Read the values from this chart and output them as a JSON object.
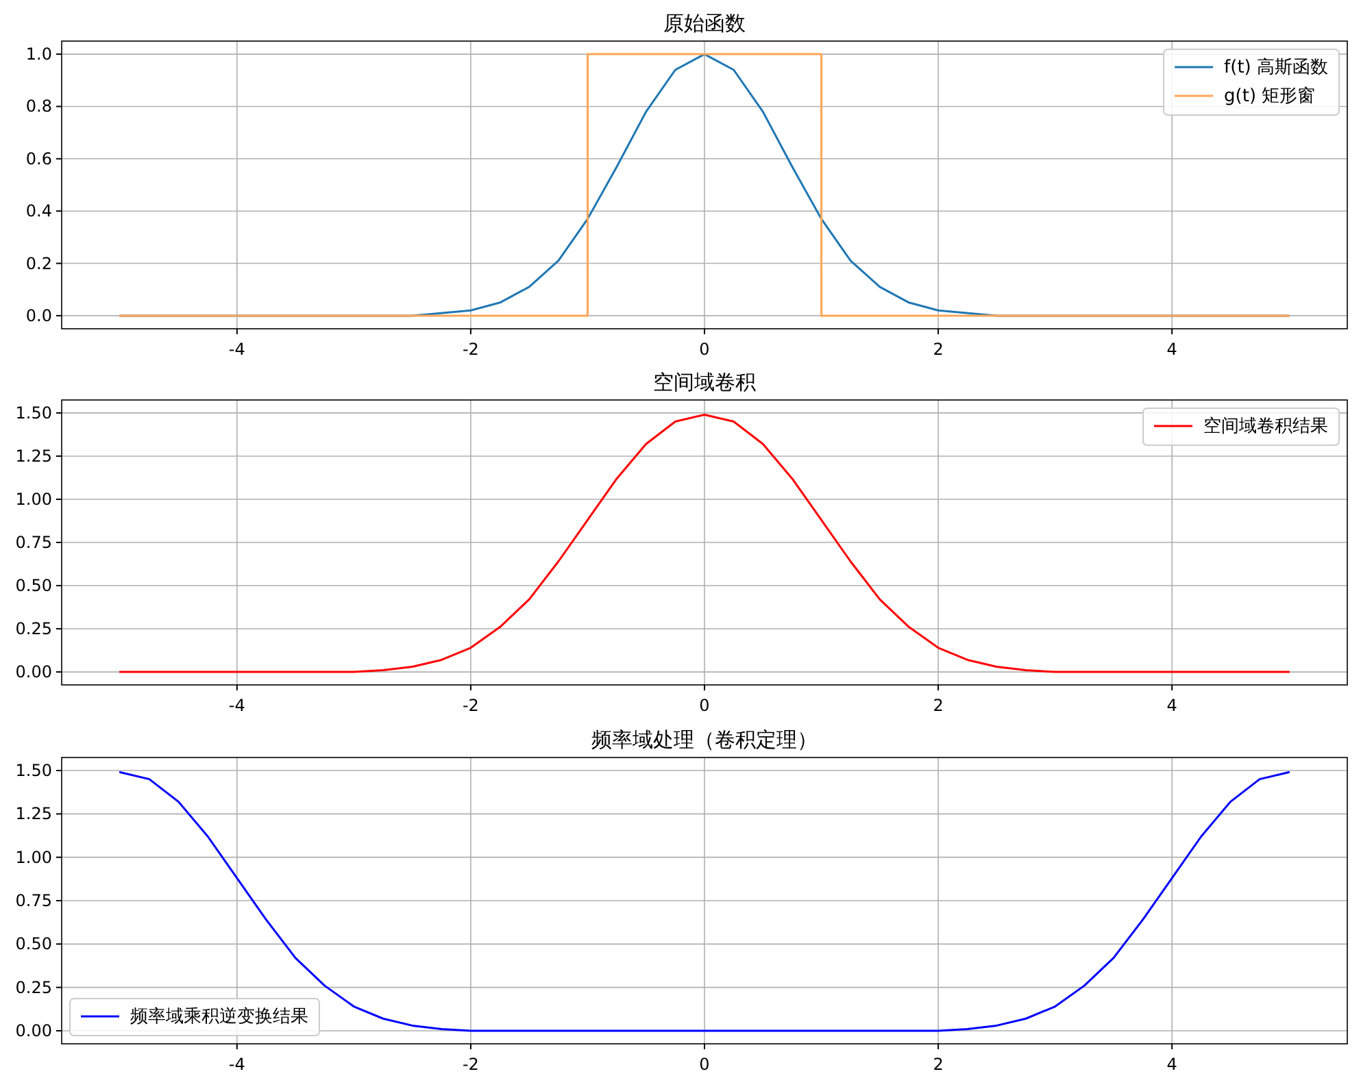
{
  "chart_data": [
    {
      "type": "line",
      "title": "原始函数",
      "xlim": [
        -5.5,
        5.5
      ],
      "xticks": [
        -4,
        -2,
        0,
        2,
        4
      ],
      "ylim": [
        -0.05,
        1.05
      ],
      "yticks": [
        {
          "value": 0,
          "label": "0.0"
        },
        {
          "value": 0.2,
          "label": "0.2"
        },
        {
          "value": 0.4,
          "label": "0.4"
        },
        {
          "value": 0.6,
          "label": "0.6"
        },
        {
          "value": 0.8,
          "label": "0.8"
        },
        {
          "value": 1,
          "label": "1.0"
        }
      ],
      "grid": true,
      "legend": "top right",
      "series": [
        {
          "name": "f(t) 高斯函数",
          "color": "#1f77b4",
          "x": [
            -5,
            -3,
            -2.5,
            -2,
            -1.75,
            -1.5,
            -1.25,
            -1,
            -0.75,
            -0.5,
            -0.25,
            0,
            0.25,
            0.5,
            0.75,
            1,
            1.25,
            1.5,
            1.75,
            2,
            2.5,
            3,
            5
          ],
          "values": [
            0,
            0,
            0,
            0.02,
            0.05,
            0.11,
            0.21,
            0.37,
            0.57,
            0.78,
            0.94,
            1,
            0.94,
            0.78,
            0.57,
            0.37,
            0.21,
            0.11,
            0.05,
            0.02,
            0,
            0,
            0
          ]
        },
        {
          "name": "g(t) 矩形窗",
          "color": "#ffa556",
          "x": [
            -5,
            -1,
            -1,
            1,
            1,
            5
          ],
          "values": [
            0,
            0,
            1,
            1,
            0,
            0
          ]
        }
      ]
    },
    {
      "type": "line",
      "title": "空间域卷积",
      "xlim": [
        -5.5,
        5.5
      ],
      "xticks": [
        -4,
        -2,
        0,
        2,
        4
      ],
      "ylim": [
        -0.075,
        1.575
      ],
      "yticks": [
        {
          "value": 0,
          "label": "0.00"
        },
        {
          "value": 0.25,
          "label": "0.25"
        },
        {
          "value": 0.5,
          "label": "0.50"
        },
        {
          "value": 0.75,
          "label": "0.75"
        },
        {
          "value": 1,
          "label": "1.00"
        },
        {
          "value": 1.25,
          "label": "1.25"
        },
        {
          "value": 1.5,
          "label": "1.50"
        }
      ],
      "grid": true,
      "legend": "top right",
      "series": [
        {
          "name": "空间域卷积结果",
          "color": "#ff0000",
          "x": [
            -5,
            -3.5,
            -3,
            -2.75,
            -2.5,
            -2.25,
            -2,
            -1.75,
            -1.5,
            -1.25,
            -1,
            -0.75,
            -0.5,
            -0.25,
            0,
            0.25,
            0.5,
            0.75,
            1,
            1.25,
            1.5,
            1.75,
            2,
            2.25,
            2.5,
            2.75,
            3,
            3.5,
            5
          ],
          "values": [
            0,
            0,
            0,
            0.01,
            0.03,
            0.07,
            0.14,
            0.26,
            0.42,
            0.64,
            0.88,
            1.12,
            1.32,
            1.45,
            1.49,
            1.45,
            1.32,
            1.12,
            0.88,
            0.64,
            0.42,
            0.26,
            0.14,
            0.07,
            0.03,
            0.01,
            0,
            0,
            0
          ]
        }
      ]
    },
    {
      "type": "line",
      "title": "频率域处理（卷积定理）",
      "xlim": [
        -5.5,
        5.5
      ],
      "xticks": [
        -4,
        -2,
        0,
        2,
        4
      ],
      "ylim": [
        -0.075,
        1.575
      ],
      "yticks": [
        {
          "value": 0,
          "label": "0.00"
        },
        {
          "value": 0.25,
          "label": "0.25"
        },
        {
          "value": 0.5,
          "label": "0.50"
        },
        {
          "value": 0.75,
          "label": "0.75"
        },
        {
          "value": 1,
          "label": "1.00"
        },
        {
          "value": 1.25,
          "label": "1.25"
        },
        {
          "value": 1.5,
          "label": "1.50"
        }
      ],
      "grid": true,
      "legend": "bottom left",
      "series": [
        {
          "name": "频率域乘积逆变换结果",
          "color": "#0000ff",
          "x": [
            -5,
            -4.75,
            -4.5,
            -4.25,
            -4,
            -3.75,
            -3.5,
            -3.25,
            -3,
            -2.75,
            -2.5,
            -2.25,
            -2,
            -1.5,
            0,
            1.5,
            2,
            2.25,
            2.5,
            2.75,
            3,
            3.25,
            3.5,
            3.75,
            4,
            4.25,
            4.5,
            4.75,
            5
          ],
          "values": [
            1.49,
            1.45,
            1.32,
            1.12,
            0.88,
            0.64,
            0.42,
            0.26,
            0.14,
            0.07,
            0.03,
            0.01,
            0,
            0,
            0,
            0,
            0,
            0.01,
            0.03,
            0.07,
            0.14,
            0.26,
            0.42,
            0.64,
            0.88,
            1.12,
            1.32,
            1.45,
            1.49
          ]
        }
      ]
    }
  ]
}
